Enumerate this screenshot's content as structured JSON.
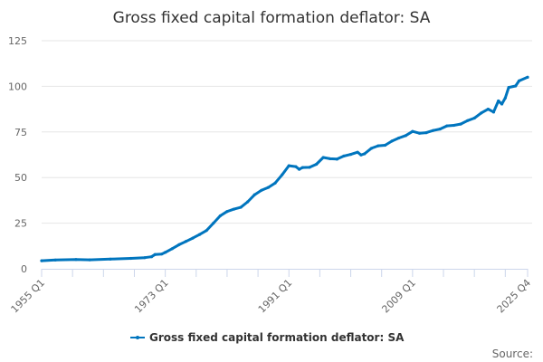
{
  "chart_data": {
    "type": "line",
    "title": "Gross fixed capital formation deflator: SA",
    "xlabel": "",
    "ylabel": "",
    "ylim": [
      0,
      125
    ],
    "yticks": [
      0,
      25,
      50,
      75,
      100,
      125
    ],
    "xlim": [
      1955.0,
      2025.75
    ],
    "xticks": [
      {
        "label": "1955 Q1",
        "x": 1955.0
      },
      {
        "label": "1973 Q1",
        "x": 1973.0
      },
      {
        "label": "1991 Q1",
        "x": 1991.0
      },
      {
        "label": "2009 Q1",
        "x": 2009.0
      },
      {
        "label": "2025 Q4",
        "x": 2025.75
      }
    ],
    "grid": true,
    "legend_position": "bottom",
    "series": [
      {
        "name": "Gross fixed capital formation deflator: SA",
        "color": "#0075be",
        "points": [
          [
            1955,
            4.4
          ],
          [
            1957,
            4.8
          ],
          [
            1960,
            5.1
          ],
          [
            1962,
            4.9
          ],
          [
            1965,
            5.3
          ],
          [
            1968,
            5.7
          ],
          [
            1970,
            6.1
          ],
          [
            1971,
            6.6
          ],
          [
            1971.5,
            7.8
          ],
          [
            1972.5,
            8.1
          ],
          [
            1973,
            9.0
          ],
          [
            1974,
            11.0
          ],
          [
            1975,
            13.2
          ],
          [
            1976,
            15.0
          ],
          [
            1977,
            16.8
          ],
          [
            1978,
            18.8
          ],
          [
            1979,
            21.0
          ],
          [
            1980,
            25.0
          ],
          [
            1981,
            29.0
          ],
          [
            1982,
            31.4
          ],
          [
            1983,
            32.7
          ],
          [
            1984,
            33.7
          ],
          [
            1985,
            36.7
          ],
          [
            1986,
            40.6
          ],
          [
            1987,
            43.0
          ],
          [
            1988,
            44.6
          ],
          [
            1989,
            47.0
          ],
          [
            1990,
            51.5
          ],
          [
            1991,
            56.5
          ],
          [
            1992,
            56.0
          ],
          [
            1992.5,
            54.5
          ],
          [
            1993,
            55.5
          ],
          [
            1994,
            55.6
          ],
          [
            1995,
            57.3
          ],
          [
            1996,
            61.0
          ],
          [
            1997,
            60.3
          ],
          [
            1998,
            60.1
          ],
          [
            1999,
            61.8
          ],
          [
            2000,
            62.7
          ],
          [
            2001,
            63.9
          ],
          [
            2001.5,
            62.4
          ],
          [
            2002,
            63.0
          ],
          [
            2003,
            66.0
          ],
          [
            2004,
            67.4
          ],
          [
            2005,
            67.7
          ],
          [
            2006,
            70.0
          ],
          [
            2007,
            71.7
          ],
          [
            2008,
            73.0
          ],
          [
            2009,
            75.3
          ],
          [
            2010,
            74.3
          ],
          [
            2011,
            74.6
          ],
          [
            2012,
            75.8
          ],
          [
            2013,
            76.6
          ],
          [
            2014,
            78.3
          ],
          [
            2015,
            78.6
          ],
          [
            2016,
            79.3
          ],
          [
            2017,
            81.2
          ],
          [
            2018,
            82.6
          ],
          [
            2019,
            85.4
          ],
          [
            2020,
            87.5
          ],
          [
            2020.8,
            85.9
          ],
          [
            2021.5,
            92.0
          ],
          [
            2022,
            90.3
          ],
          [
            2022.5,
            93.6
          ],
          [
            2023,
            99.4
          ],
          [
            2024,
            100.2
          ],
          [
            2024.5,
            103.0
          ],
          [
            2025.75,
            105.0
          ]
        ]
      }
    ],
    "source_label": "Source:"
  }
}
